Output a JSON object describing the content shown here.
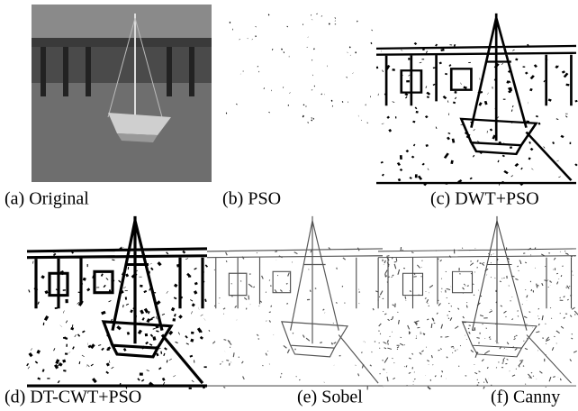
{
  "figure": {
    "panels": [
      {
        "caption": "(a) Original"
      },
      {
        "caption": "(b) PSO"
      },
      {
        "caption": "(c) DWT+PSO"
      },
      {
        "caption": "(d) DT-CWT+PSO"
      },
      {
        "caption": "(e) Sobel"
      },
      {
        "caption": "(f) Canny"
      }
    ]
  }
}
